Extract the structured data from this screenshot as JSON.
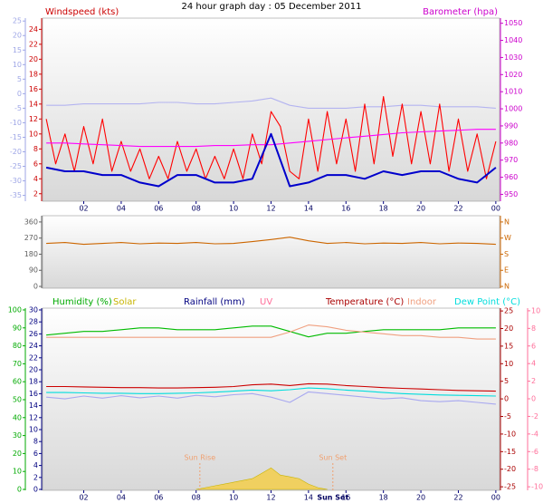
{
  "title": "24 hour graph day : 05 December 2011",
  "chart_data": [
    {
      "type": "line",
      "xlim": [
        -0.2,
        24.2
      ],
      "xticks": [
        {
          "value": 2,
          "label": "02"
        },
        {
          "value": 4,
          "label": "04"
        },
        {
          "value": 6,
          "label": "06"
        },
        {
          "value": 8,
          "label": "08"
        },
        10,
        12,
        14,
        16,
        18,
        20,
        22,
        {
          "value": 24,
          "label": "00"
        }
      ],
      "axes": [
        {
          "id": "wind",
          "label": "Windspeed (kts)",
          "color": "#cc0000",
          "side": "left",
          "lim": [
            1,
            25.5
          ],
          "ticks": [
            2,
            4,
            6,
            8,
            10,
            12,
            14,
            16,
            18,
            20,
            22,
            24
          ]
        },
        {
          "id": "temp",
          "color": "#9ea6e6",
          "side": "left-outer",
          "lim": [
            -37,
            26
          ],
          "ticks": [
            25,
            20,
            15,
            10,
            5,
            0,
            -5,
            -10,
            -15,
            -20,
            -25,
            -30,
            -35
          ]
        },
        {
          "id": "baro",
          "label": "Barometer (hpa)",
          "color": "#cc00cc",
          "side": "right",
          "lim": [
            946,
            1053
          ],
          "ticks": [
            950,
            960,
            970,
            980,
            990,
            1000,
            1010,
            1020,
            1030,
            1040,
            1050
          ]
        }
      ],
      "x": [
        0,
        1,
        2,
        3,
        4,
        5,
        6,
        7,
        8,
        9,
        10,
        11,
        12,
        13,
        14,
        15,
        16,
        17,
        18,
        19,
        20,
        21,
        22,
        23,
        24
      ],
      "series": [
        {
          "color": "#b4b4f0",
          "axis": "temp",
          "values": [
            -4,
            -4,
            -3.5,
            -3.5,
            -3.5,
            -3.5,
            -3,
            -3,
            -3.5,
            -3.5,
            -3,
            -2.5,
            -1.5,
            -4,
            -5,
            -5,
            -5,
            -4.5,
            -4.5,
            -4,
            -4,
            -4.5,
            -4.5,
            -4.5,
            -5
          ]
        },
        {
          "color": "#ff0000",
          "axis": "wind",
          "x": [
            0,
            0.5,
            1,
            1.5,
            2,
            2.5,
            3,
            3.5,
            4,
            4.5,
            5,
            5.5,
            6,
            6.5,
            7,
            7.5,
            8,
            8.5,
            9,
            9.5,
            10,
            10.5,
            11,
            11.5,
            12,
            12.5,
            13,
            13.5,
            14,
            14.5,
            15,
            15.5,
            16,
            16.5,
            17,
            17.5,
            18,
            18.5,
            19,
            19.5,
            20,
            20.5,
            21,
            21.5,
            22,
            22.5,
            23,
            23.5,
            24
          ],
          "values": [
            12,
            6,
            10,
            5,
            11,
            6,
            12,
            5,
            9,
            5,
            8,
            4,
            7,
            4,
            9,
            5,
            8,
            4,
            7,
            4,
            8,
            4,
            10,
            6,
            13,
            11,
            5,
            4,
            12,
            5,
            13,
            6,
            12,
            5,
            14,
            6,
            15,
            7,
            14,
            6,
            13,
            6,
            14,
            5,
            12,
            5,
            10,
            4,
            9
          ]
        },
        {
          "color": "#ff00ff",
          "axis": "baro",
          "values": [
            980,
            980,
            979.5,
            979,
            978.5,
            978,
            978,
            978,
            978,
            978.5,
            978.5,
            979,
            979,
            980,
            981,
            982,
            983,
            984,
            985,
            986,
            986.5,
            987,
            987.5,
            988,
            988
          ]
        },
        {
          "color": "#0000cc",
          "axis": "wind",
          "width": 2,
          "values": [
            5.5,
            5,
            5,
            4.5,
            4.5,
            3.5,
            3,
            4.5,
            4.5,
            3.5,
            3.5,
            4,
            10,
            3,
            3.5,
            4.5,
            4.5,
            4,
            5,
            4.5,
            5,
            5,
            4,
            3.5,
            5.5
          ]
        }
      ]
    },
    {
      "type": "line",
      "xlim": [
        -0.2,
        24.2
      ],
      "axes": [
        {
          "id": "dir",
          "color": "#606060",
          "side": "left",
          "lim": [
            -10,
            395
          ],
          "ticks": [
            360,
            270,
            180,
            90,
            0
          ]
        },
        {
          "id": "card",
          "color": "#cc6600",
          "side": "right",
          "lim": [
            -10,
            395
          ],
          "ticks": [
            {
              "value": 360,
              "label": "N"
            },
            {
              "value": 270,
              "label": "W"
            },
            {
              "value": 180,
              "label": "S"
            },
            {
              "value": 90,
              "label": "E"
            },
            {
              "value": 0,
              "label": "N"
            }
          ]
        }
      ],
      "x": [
        0,
        1,
        2,
        3,
        4,
        5,
        6,
        7,
        8,
        9,
        10,
        11,
        12,
        13,
        14,
        15,
        16,
        17,
        18,
        19,
        20,
        21,
        22,
        23,
        24
      ],
      "series": [
        {
          "color": "#cc6600",
          "axis": "dir",
          "values": [
            240,
            245,
            235,
            240,
            245,
            238,
            242,
            240,
            245,
            238,
            240,
            250,
            262,
            275,
            255,
            240,
            245,
            238,
            242,
            240,
            245,
            238,
            242,
            240,
            235
          ]
        }
      ]
    },
    {
      "type": "line",
      "xlim": [
        -0.2,
        24.2
      ],
      "xticks": [
        {
          "value": 2,
          "label": "02"
        },
        {
          "value": 4,
          "label": "04"
        },
        {
          "value": 6,
          "label": "06"
        },
        {
          "value": 8,
          "label": "08"
        },
        10,
        12,
        14,
        16,
        18,
        20,
        22,
        {
          "value": 24,
          "label": "00"
        }
      ],
      "axes": [
        {
          "id": "hum",
          "label": "Humidity (%)",
          "color": "#00aa00",
          "side": "left-outer",
          "lim": [
            -0.5,
            101
          ],
          "ticks": [
            100,
            90,
            80,
            70,
            60,
            50,
            40,
            30,
            20,
            10,
            0
          ]
        },
        {
          "id": "rain",
          "label": "Rainfall (mm)",
          "color": "#000080",
          "side": "left",
          "lim": [
            -0.15,
            30.3
          ],
          "ticks": [
            30,
            28,
            26,
            24,
            22,
            20,
            18,
            16,
            14,
            12,
            10,
            8,
            6,
            4,
            2,
            0
          ]
        },
        {
          "id": "temp",
          "label": "Temperature (°C)",
          "color": "#aa0000",
          "side": "right",
          "lim": [
            -26,
            25.8
          ],
          "ticks": [
            25,
            20,
            15,
            10,
            5,
            0,
            -5,
            -10,
            -15,
            -20,
            -25
          ]
        },
        {
          "id": "uv",
          "label": "UV",
          "color": "#ff6f9a",
          "side": "right-outer",
          "lim": [
            -10.4,
            10.3
          ],
          "ticks": [
            10,
            8,
            6,
            4,
            2,
            0,
            -2,
            -4,
            -6,
            -8,
            -10
          ]
        }
      ],
      "x": [
        0,
        1,
        2,
        3,
        4,
        5,
        6,
        7,
        8,
        9,
        10,
        11,
        12,
        13,
        14,
        15,
        16,
        17,
        18,
        19,
        20,
        21,
        22,
        23,
        24
      ],
      "series": [
        {
          "name": "",
          "color": "#00bb00",
          "axis": "hum",
          "values": [
            86,
            87,
            88,
            88,
            89,
            90,
            90,
            89,
            89,
            89,
            90,
            91,
            91,
            88,
            85,
            87,
            87,
            88,
            89,
            89,
            89,
            89,
            90,
            90,
            90
          ]
        },
        {
          "name": "Solar",
          "color": "#c8b400",
          "fill": "#f0d060",
          "axis": "hum",
          "area": true,
          "x": [
            8,
            8.5,
            9,
            9.5,
            10,
            10.5,
            11,
            11.5,
            12,
            12.5,
            13,
            13.5,
            14,
            14.5,
            15
          ],
          "values": [
            0,
            1,
            2,
            3,
            4,
            5,
            6,
            9,
            12,
            8,
            7,
            6,
            3,
            1,
            0
          ]
        },
        {
          "name": "Indoor",
          "color": "#f0a080",
          "axis": "temp",
          "values": [
            17.5,
            17.5,
            17.5,
            17.5,
            17.5,
            17.5,
            17.5,
            17.5,
            17.5,
            17.5,
            17.5,
            17.5,
            17.5,
            19,
            21,
            20.5,
            19.5,
            19,
            18.5,
            18,
            18,
            17.5,
            17.5,
            17,
            17
          ]
        },
        {
          "name": "",
          "color": "#cc0000",
          "axis": "temp",
          "values": [
            3.5,
            3.5,
            3.4,
            3.3,
            3.2,
            3.2,
            3.1,
            3.1,
            3.2,
            3.3,
            3.5,
            4,
            4.2,
            3.8,
            4.3,
            4.2,
            3.8,
            3.5,
            3.2,
            3,
            2.8,
            2.6,
            2.4,
            2.3,
            2.2
          ]
        },
        {
          "name": "Dew Point (°C)",
          "color": "#00dddd",
          "axis": "temp",
          "values": [
            1.8,
            1.8,
            1.7,
            1.6,
            1.6,
            1.5,
            1.5,
            1.6,
            1.7,
            1.9,
            2.2,
            2.5,
            2.3,
            2.6,
            3.1,
            2.9,
            2.5,
            2.2,
            1.8,
            1.5,
            1.3,
            1.1,
            1,
            0.9,
            0.8
          ]
        },
        {
          "name": "",
          "color": "#a8a8f0",
          "axis": "temp",
          "values": [
            0.5,
            0,
            0.8,
            0.2,
            0.9,
            0.3,
            0.8,
            0.2,
            1,
            0.6,
            1.2,
            1.5,
            0.5,
            -1,
            2,
            1.5,
            1,
            0.5,
            0,
            0.3,
            -0.5,
            -0.8,
            -0.5,
            -1,
            -1.5
          ]
        }
      ],
      "annotations": [
        {
          "label": "Sun Rise",
          "x": 8.2,
          "color": "#f0a070"
        },
        {
          "label": "Sun Set",
          "x": 15.3,
          "color": "#f0a070",
          "on_axis": true
        }
      ]
    }
  ]
}
